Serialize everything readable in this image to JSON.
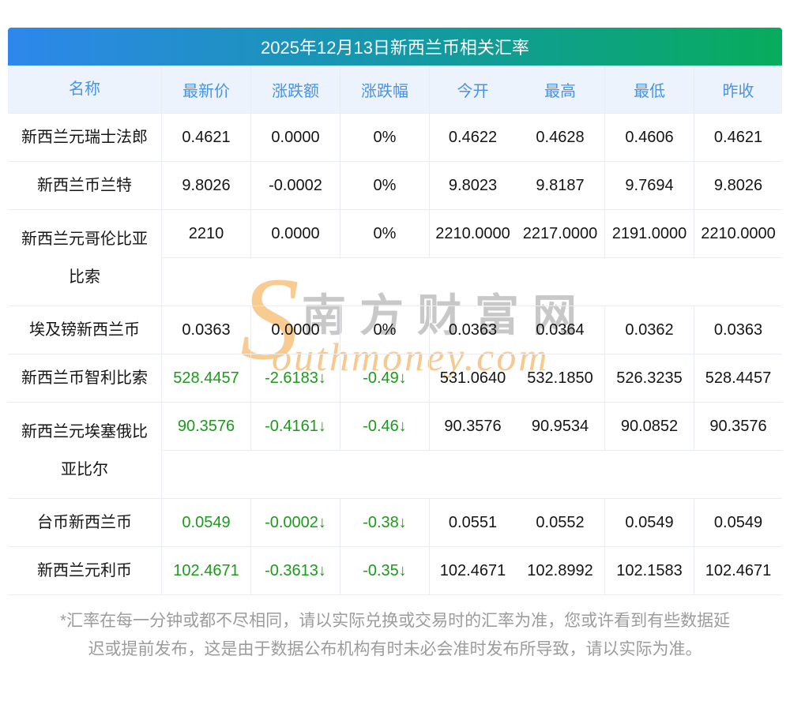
{
  "title": "2025年12月13日新西兰币相关汇率",
  "table": {
    "headers": [
      "名称",
      "最新价",
      "涨跌额",
      "涨跌幅",
      "今开",
      "最高",
      "最低",
      "昨收"
    ],
    "rows": [
      {
        "name": "新西兰元瑞士法郎",
        "latest": "0.4621",
        "change": "0.0000",
        "pct": "0%",
        "open": "0.4622",
        "high": "0.4628",
        "low": "0.4606",
        "prev": "0.4621",
        "trend": "flat",
        "tall": false
      },
      {
        "name": "新西兰币兰特",
        "latest": "9.8026",
        "change": "-0.0002",
        "pct": "0%",
        "open": "9.8023",
        "high": "9.8187",
        "low": "9.7694",
        "prev": "9.8026",
        "trend": "flat",
        "tall": false
      },
      {
        "name": "新西兰元哥伦比亚比索",
        "latest": "2210",
        "change": "0.0000",
        "pct": "0%",
        "open": "2210.0000",
        "high": "2217.0000",
        "low": "2191.0000",
        "prev": "2210.0000",
        "trend": "flat",
        "tall": true
      },
      {
        "name": "埃及镑新西兰币",
        "latest": "0.0363",
        "change": "0.0000",
        "pct": "0%",
        "open": "0.0363",
        "high": "0.0364",
        "low": "0.0362",
        "prev": "0.0363",
        "trend": "flat",
        "tall": false
      },
      {
        "name": "新西兰币智利比索",
        "latest": "528.4457",
        "change": "-2.6183↓",
        "pct": "-0.49↓",
        "open": "531.0640",
        "high": "532.1850",
        "low": "526.3235",
        "prev": "528.4457",
        "trend": "down",
        "tall": false
      },
      {
        "name": "新西兰元埃塞俄比亚比尔",
        "latest": "90.3576",
        "change": "-0.4161↓",
        "pct": "-0.46↓",
        "open": "90.3576",
        "high": "90.9534",
        "low": "90.0852",
        "prev": "90.3576",
        "trend": "down",
        "tall": true
      },
      {
        "name": "台币新西兰币",
        "latest": "0.0549",
        "change": "-0.0002↓",
        "pct": "-0.38↓",
        "open": "0.0551",
        "high": "0.0552",
        "low": "0.0549",
        "prev": "0.0549",
        "trend": "down",
        "tall": false
      },
      {
        "name": "新西兰元利币",
        "latest": "102.4671",
        "change": "-0.3613↓",
        "pct": "-0.35↓",
        "open": "102.4671",
        "high": "102.8992",
        "low": "102.1583",
        "prev": "102.4671",
        "trend": "down",
        "tall": false
      }
    ]
  },
  "watermark": {
    "swoosh": "S",
    "cn": "南方财富网",
    "en": "outhmoney.com"
  },
  "footer": {
    "line1": "*汇率在每一分钟或都不尽相同，请以实际兑换或交易时的汇率为准，您或许看到有些数据延",
    "line2": "迟或提前发布，这是由于数据公布机构有时未必会准时发布所导致，请以实际为准。"
  },
  "colors": {
    "title_gradient_start": "#2E87EC",
    "title_gradient_end": "#07AC5B",
    "header_bg": "#EDF3FC",
    "header_text": "#4793EA",
    "border": "#E9ECF1",
    "down_green": "#1B9B1B",
    "footer_text": "#9C9C9C",
    "watermark_orange": "#F5C990"
  }
}
